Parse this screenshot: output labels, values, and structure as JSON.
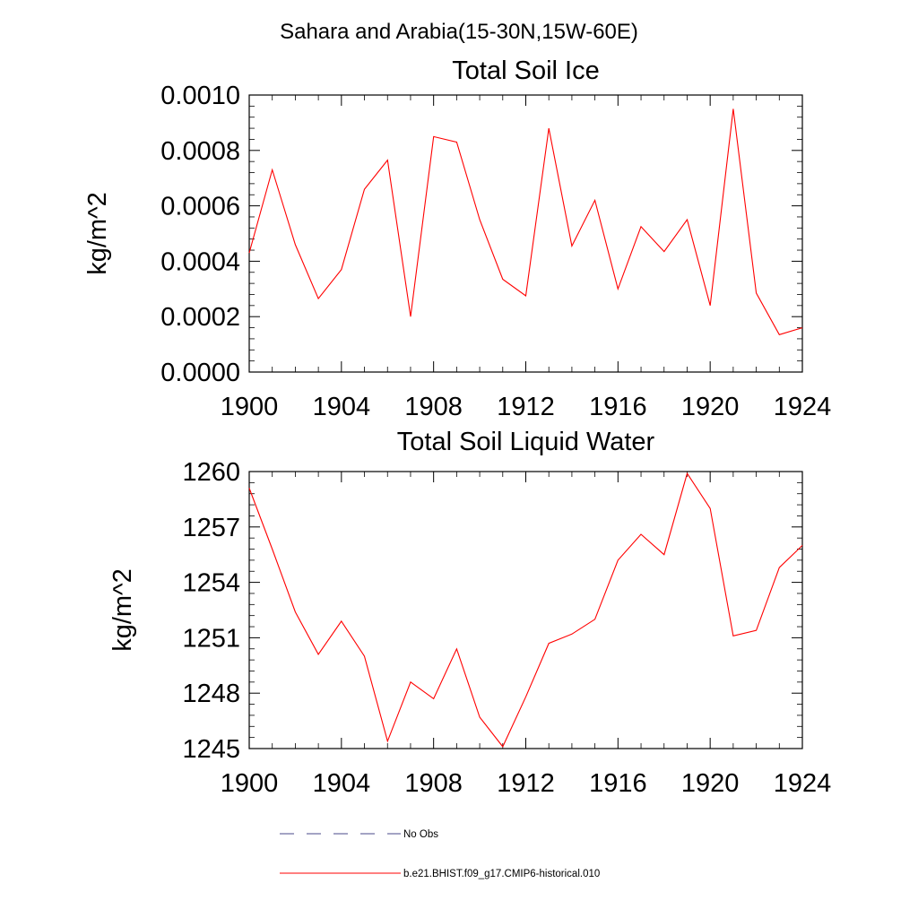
{
  "figure_title": "Sahara and Arabia(15-30N,15W-60E)",
  "legend": {
    "entries": [
      {
        "label": "No Obs",
        "color": "#4a4a8a",
        "style": "dashed"
      },
      {
        "label": "b.e21.BHIST.f09_g17.CMIP6-historical.010",
        "color": "#ff0000",
        "style": "solid"
      }
    ]
  },
  "chart_data": [
    {
      "type": "line",
      "title": "Total Soil Ice",
      "xlabel": "",
      "ylabel": "kg/m^2",
      "xlim": [
        1900,
        1924
      ],
      "ylim": [
        0,
        0.001
      ],
      "x_ticks": [
        "1900",
        "1904",
        "1908",
        "1912",
        "1916",
        "1920",
        "1924"
      ],
      "y_ticks": [
        "0.0000",
        "0.0002",
        "0.0004",
        "0.0006",
        "0.0008",
        "0.0010"
      ],
      "x_tick_values": [
        1900,
        1904,
        1908,
        1912,
        1916,
        1920,
        1924
      ],
      "y_tick_values": [
        0,
        0.0002,
        0.0004,
        0.0006,
        0.0008,
        0.001
      ],
      "grid": false,
      "series": [
        {
          "name": "b.e21.BHIST.f09_g17.CMIP6-historical.010",
          "color": "#ff0000",
          "x": [
            1900,
            1901,
            1902,
            1903,
            1904,
            1905,
            1906,
            1907,
            1908,
            1909,
            1910,
            1911,
            1912,
            1913,
            1914,
            1915,
            1916,
            1917,
            1918,
            1919,
            1920,
            1921,
            1922,
            1923,
            1924
          ],
          "values": [
            0.00043,
            0.00073,
            0.00046,
            0.000265,
            0.00037,
            0.00066,
            0.000765,
            0.0002,
            0.00085,
            0.00083,
            0.00055,
            0.000335,
            0.000275,
            0.00088,
            0.000455,
            0.00062,
            0.0003,
            0.000525,
            0.000435,
            0.00055,
            0.00024,
            0.00095,
            0.000285,
            0.000135,
            0.00016
          ]
        }
      ]
    },
    {
      "type": "line",
      "title": "Total Soil Liquid Water",
      "xlabel": "",
      "ylabel": "kg/m^2",
      "xlim": [
        1900,
        1924
      ],
      "ylim": [
        1245,
        1260
      ],
      "x_ticks": [
        "1900",
        "1904",
        "1908",
        "1912",
        "1916",
        "1920",
        "1924"
      ],
      "y_ticks": [
        "1245",
        "1248",
        "1251",
        "1254",
        "1257",
        "1260"
      ],
      "x_tick_values": [
        1900,
        1904,
        1908,
        1912,
        1916,
        1920,
        1924
      ],
      "y_tick_values": [
        1245,
        1248,
        1251,
        1254,
        1257,
        1260
      ],
      "grid": false,
      "series": [
        {
          "name": "b.e21.BHIST.f09_g17.CMIP6-historical.010",
          "color": "#ff0000",
          "x": [
            1900,
            1901,
            1902,
            1903,
            1904,
            1905,
            1906,
            1907,
            1908,
            1909,
            1910,
            1911,
            1912,
            1913,
            1914,
            1915,
            1916,
            1917,
            1918,
            1919,
            1920,
            1921,
            1922,
            1923,
            1924
          ],
          "values": [
            1259.1,
            1255.8,
            1252.4,
            1250.1,
            1251.9,
            1250.0,
            1245.4,
            1248.6,
            1247.7,
            1250.4,
            1246.7,
            1245.1,
            1247.8,
            1250.7,
            1251.2,
            1252.0,
            1255.2,
            1256.6,
            1255.5,
            1259.9,
            1258.0,
            1251.1,
            1251.4,
            1254.8,
            1256.0
          ]
        }
      ]
    }
  ]
}
